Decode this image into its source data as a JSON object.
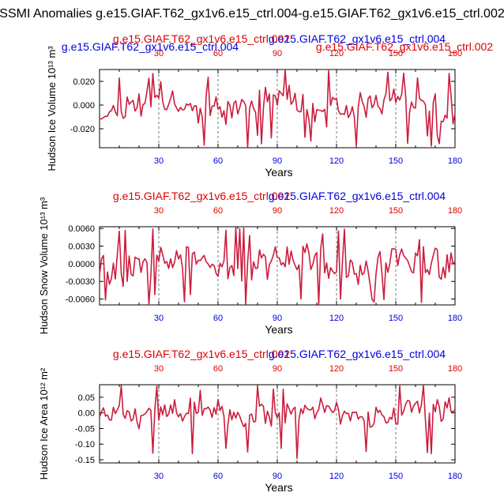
{
  "page_title": "SSMI Anomalies g.e15.GIAF.T62_gx1v6.e15_ctrl.004-g.e15.GIAF.T62_gx1v6.e15_ctrl.002",
  "colors": {
    "series_a": "#dd0000",
    "series_b": "#0000dd",
    "line": "#cc1d3d",
    "axis": "#000000",
    "grid": "#555555"
  },
  "chart_data": [
    {
      "type": "line",
      "ylabel": "Hudson Ice Volume 10¹³ m³",
      "xlabel": "Years",
      "series_label_left": "g.e15.GIAF.T62_gx1v6.e15_ctrl.002",
      "series_label_right": "g.e15.GIAF.T62_gx1v6.e15_ctrl.004",
      "series_label_left_b": "g.e15.GIAF.T62_gx1v6.e15_ctrl.004",
      "series_label_right_b": "g.e15.GIAF.T62_gx1v6.e15_ctrl.002",
      "xlim": [
        0,
        180
      ],
      "ylim": [
        -0.036,
        0.03
      ],
      "xticks": [
        30,
        60,
        90,
        120,
        150,
        180
      ],
      "yticks": [
        "0.020",
        "0.000",
        "-0.020"
      ],
      "ytick_values": [
        0.02,
        0.0,
        -0.02
      ],
      "series": [
        {
          "name": "anomaly",
          "amplitude": 0.03,
          "floor": -0.036,
          "ceil": 0.03,
          "seed": 11
        }
      ]
    },
    {
      "type": "line",
      "ylabel": "Hudson Snow Volume 10¹³ m³",
      "xlabel": "Years",
      "series_label_left": "g.e15.GIAF.T62_gx1v6.e15_ctrl.002",
      "series_label_right": "g.e15.GIAF.T62_gx1v6.e15_ctrl.004",
      "xlim": [
        0,
        180
      ],
      "ylim": [
        -0.007,
        0.0063
      ],
      "xticks": [
        30,
        60,
        90,
        120,
        150,
        180
      ],
      "yticks": [
        "0.0060",
        "0.0030",
        "0.0000",
        "-0.0030",
        "-0.0060"
      ],
      "ytick_values": [
        0.006,
        0.003,
        0.0,
        -0.003,
        -0.006
      ],
      "series": [
        {
          "name": "anomaly",
          "amplitude": 0.0062,
          "floor": -0.007,
          "ceil": 0.0063,
          "seed": 29
        }
      ]
    },
    {
      "type": "line",
      "ylabel": "Hudson Ice Area 10¹² m²",
      "xlabel": "Years",
      "series_label_left": "g.e15.GIAF.T62_gx1v6.e15_ctrl.002",
      "series_label_right": "g.e15.GIAF.T62_gx1v6.e15_ctrl.004",
      "xlim": [
        0,
        180
      ],
      "ylim": [
        -0.16,
        0.09
      ],
      "xticks": [
        30,
        60,
        90,
        120,
        150,
        180
      ],
      "yticks": [
        "0.05",
        "0.00",
        "-0.05",
        "-0.10",
        "-0.15"
      ],
      "ytick_values": [
        0.05,
        0.0,
        -0.05,
        -0.1,
        -0.15
      ],
      "series": [
        {
          "name": "anomaly",
          "amplitude": 0.085,
          "floor": -0.16,
          "ceil": 0.09,
          "seed": 47
        }
      ]
    }
  ]
}
